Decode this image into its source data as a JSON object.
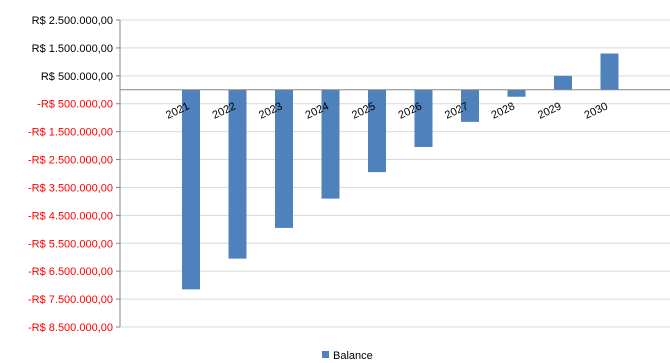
{
  "chart_data": {
    "type": "bar",
    "categories": [
      "2021",
      "2022",
      "2023",
      "2024",
      "2025",
      "2026",
      "2027",
      "2028",
      "2029",
      "2030"
    ],
    "series": [
      {
        "name": "Balance",
        "color": "#4F81BD",
        "values": [
          -7150000,
          -6050000,
          -4950000,
          -3900000,
          -2950000,
          -2050000,
          -1150000,
          -250000,
          500000,
          1300000
        ]
      }
    ],
    "yticks": [
      2500000,
      1500000,
      500000,
      -500000,
      -1500000,
      -2500000,
      -3500000,
      -4500000,
      -5500000,
      -6500000,
      -7500000,
      -8500000
    ],
    "ytick_labels": [
      "R$ 2.500.000,00",
      "R$ 1.500.000,00",
      "R$ 500.000,00",
      "-R$ 500.000,00",
      "-R$ 1.500.000,00",
      "-R$ 2.500.000,00",
      "-R$ 3.500.000,00",
      "-R$ 4.500.000,00",
      "-R$ 5.500.000,00",
      "-R$ 6.500.000,00",
      "-R$ 7.500.000,00",
      "-R$ 8.500.000,00"
    ],
    "ylim": [
      -8500000,
      2500000
    ],
    "negative_label_color": "#FF0000",
    "positive_label_color": "#000000",
    "grid": true,
    "legend": "bottom-center",
    "title": "",
    "xlabel": "",
    "ylabel": ""
  }
}
